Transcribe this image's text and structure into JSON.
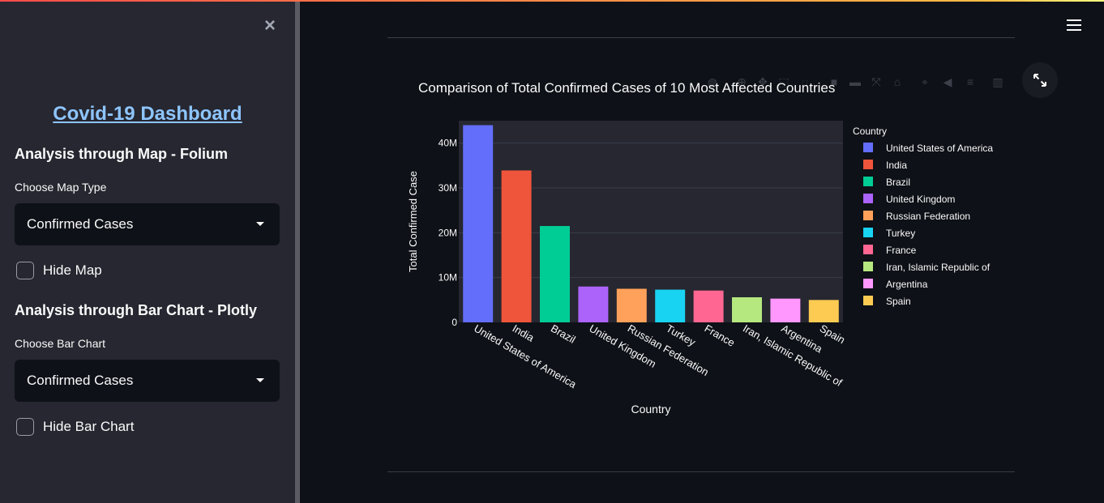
{
  "sidebar": {
    "title": "Covid-19 Dashboard",
    "map_section": {
      "heading": "Analysis through Map - Folium",
      "select_label": "Choose Map Type",
      "select_value": "Confirmed Cases",
      "checkbox_label": "Hide Map",
      "checkbox_checked": false
    },
    "bar_section": {
      "heading": "Analysis through Bar Chart - Plotly",
      "select_label": "Choose Bar Chart",
      "select_value": "Confirmed Cases",
      "checkbox_label": "Hide Bar Chart",
      "checkbox_checked": false
    }
  },
  "colors": {
    "accent_gradient_start": "#ff4b4b",
    "accent_gradient_end": "#fffd80",
    "link": "#8ec5ff"
  },
  "chart_data": {
    "type": "bar",
    "title": "Comparison of Total Confirmed Cases of 10 Most Affected Countries",
    "xlabel": "Country",
    "ylabel": "Total Confirmed Case",
    "ylim": [
      0,
      45000000
    ],
    "yticks": [
      0,
      10000000,
      20000000,
      30000000,
      40000000
    ],
    "ytick_labels": [
      "0",
      "10M",
      "20M",
      "30M",
      "40M"
    ],
    "grid": true,
    "legend_title": "Country",
    "legend_position": "right",
    "categories": [
      "United States of America",
      "India",
      "Brazil",
      "United Kingdom",
      "Russian Federation",
      "Turkey",
      "France",
      "Iran, Islamic Republic of",
      "Argentina",
      "Spain"
    ],
    "values": [
      44000000,
      33900000,
      21500000,
      8000000,
      7500000,
      7300000,
      7100000,
      5600000,
      5300000,
      5000000
    ],
    "colors": [
      "#636efa",
      "#ef553b",
      "#00cc96",
      "#ab63fa",
      "#ffa15a",
      "#19d3f3",
      "#ff6692",
      "#b6e880",
      "#ff97ff",
      "#fecb52"
    ]
  }
}
